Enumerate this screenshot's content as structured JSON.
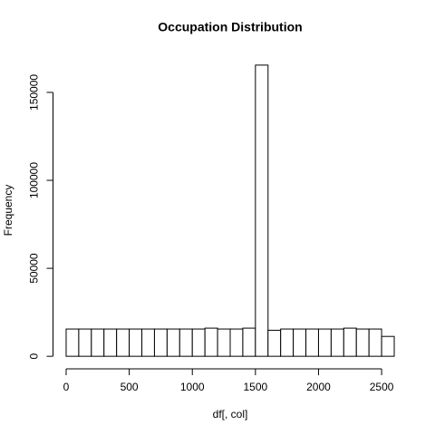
{
  "chart_data": {
    "type": "histogram",
    "title": "Occupation  Distribution",
    "x_label": "df[, col]",
    "y_label": "Frequency",
    "bins": [
      0,
      100,
      200,
      300,
      400,
      500,
      600,
      700,
      800,
      900,
      1000,
      1100,
      1200,
      1300,
      1400,
      1500,
      1600,
      1700,
      1800,
      1900,
      2000,
      2100,
      2200,
      2300,
      2400,
      2500,
      2600
    ],
    "values": [
      15500,
      15500,
      15500,
      15500,
      15500,
      15500,
      15500,
      15500,
      15500,
      15500,
      15500,
      16000,
      15500,
      15500,
      16000,
      165500,
      14800,
      15500,
      15500,
      15500,
      15500,
      15500,
      16000,
      15500,
      15500,
      11300
    ],
    "color": "#ffffff",
    "xlim": [
      -104,
      2704
    ],
    "ylim": [
      -6620,
      172120
    ],
    "xticks": [
      0,
      500,
      1000,
      1500,
      2000,
      2500
    ],
    "yticks": [
      0,
      50000,
      100000,
      150000
    ]
  }
}
